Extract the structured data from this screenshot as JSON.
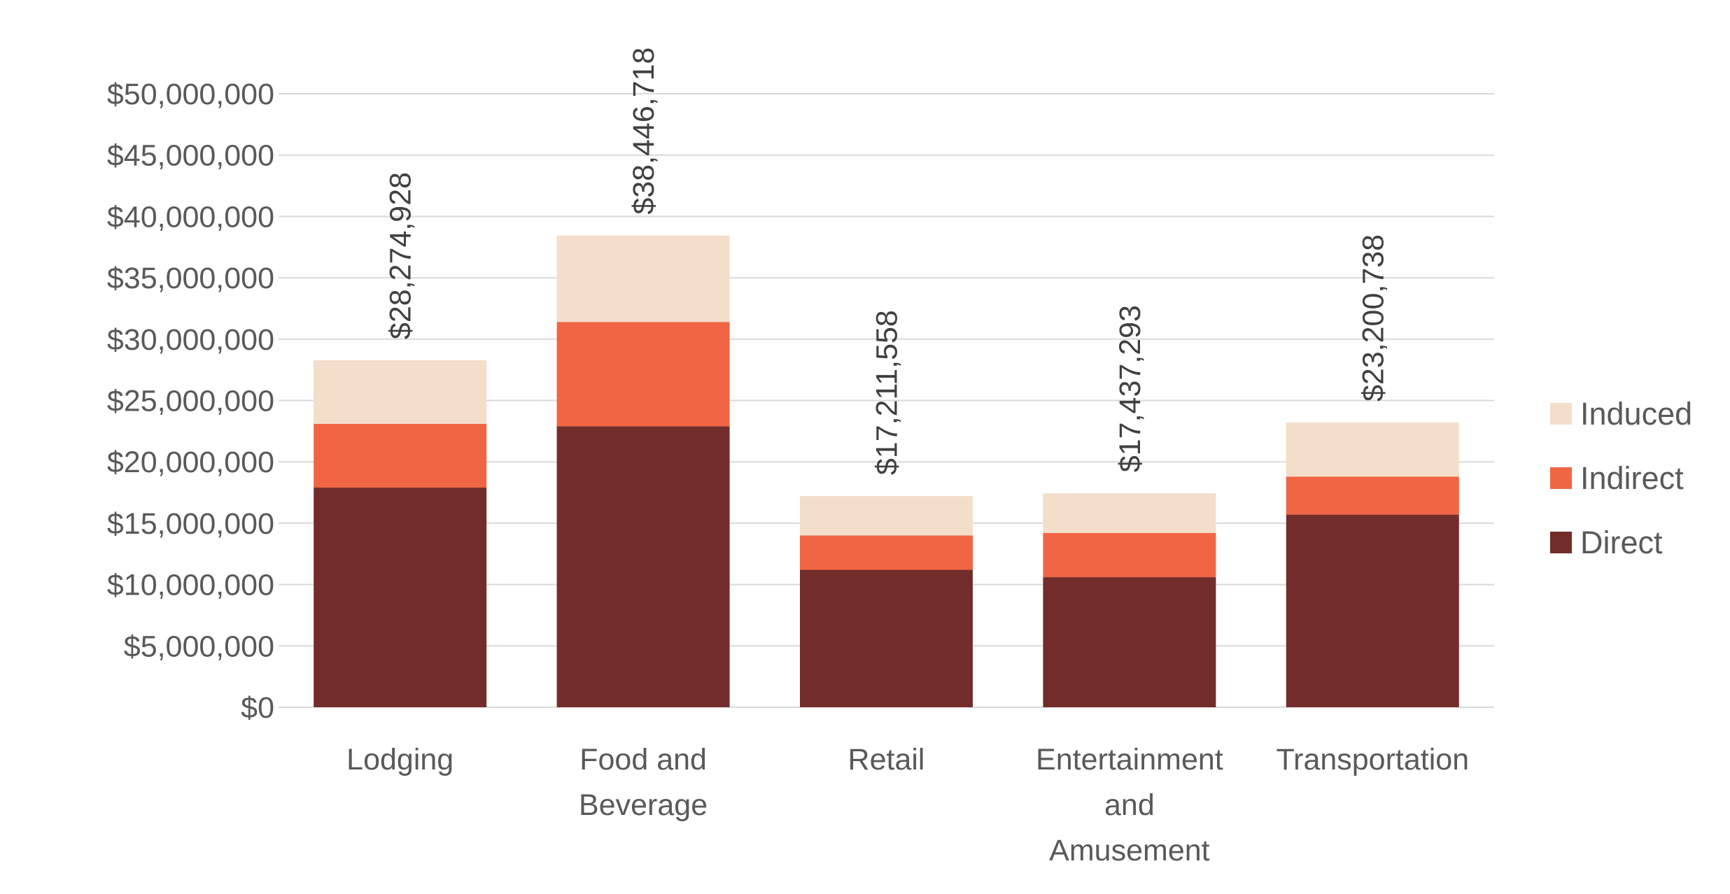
{
  "chart_data": {
    "type": "bar",
    "stacked": true,
    "title": "",
    "xlabel": "",
    "ylabel": "",
    "categories": [
      [
        "Lodging"
      ],
      [
        "Food and",
        "Beverage"
      ],
      [
        "Retail"
      ],
      [
        "Entertainment",
        "and",
        "Amusement"
      ],
      [
        "Transportation"
      ]
    ],
    "category_names": [
      "Lodging",
      "Food and Beverage",
      "Retail",
      "Entertainment and Amusement",
      "Transportation"
    ],
    "series": [
      {
        "name": "Direct",
        "color": "#722D2A",
        "values": [
          17900000,
          22900000,
          11200000,
          10600000,
          15700000
        ]
      },
      {
        "name": "Indirect",
        "color": "#F06543",
        "values": [
          5200000,
          8500000,
          2800000,
          3600000,
          3100000
        ]
      },
      {
        "name": "Induced",
        "color": "#F3DECA",
        "values": [
          5174928,
          7046718,
          3211558,
          3237293,
          4400738
        ]
      }
    ],
    "totals": [
      28274928,
      38446718,
      17211558,
      17437293,
      23200738
    ],
    "total_labels": [
      "$28,274,928",
      "$38,446,718",
      "$17,211,558",
      "$17,437,293",
      "$23,200,738"
    ],
    "ylim": [
      0,
      50000000
    ],
    "yticks": [
      0,
      5000000,
      10000000,
      15000000,
      20000000,
      25000000,
      30000000,
      35000000,
      40000000,
      45000000,
      50000000
    ],
    "ytick_labels": [
      "$0",
      "$5,000,000",
      "$10,000,000",
      "$15,000,000",
      "$20,000,000",
      "$25,000,000",
      "$30,000,000",
      "$35,000,000",
      "$40,000,000",
      "$45,000,000",
      "$50,000,000"
    ],
    "legend_order": [
      "Induced",
      "Indirect",
      "Direct"
    ],
    "legend_position": "right",
    "grid": true,
    "gridline_color": "#D9D9D9"
  }
}
